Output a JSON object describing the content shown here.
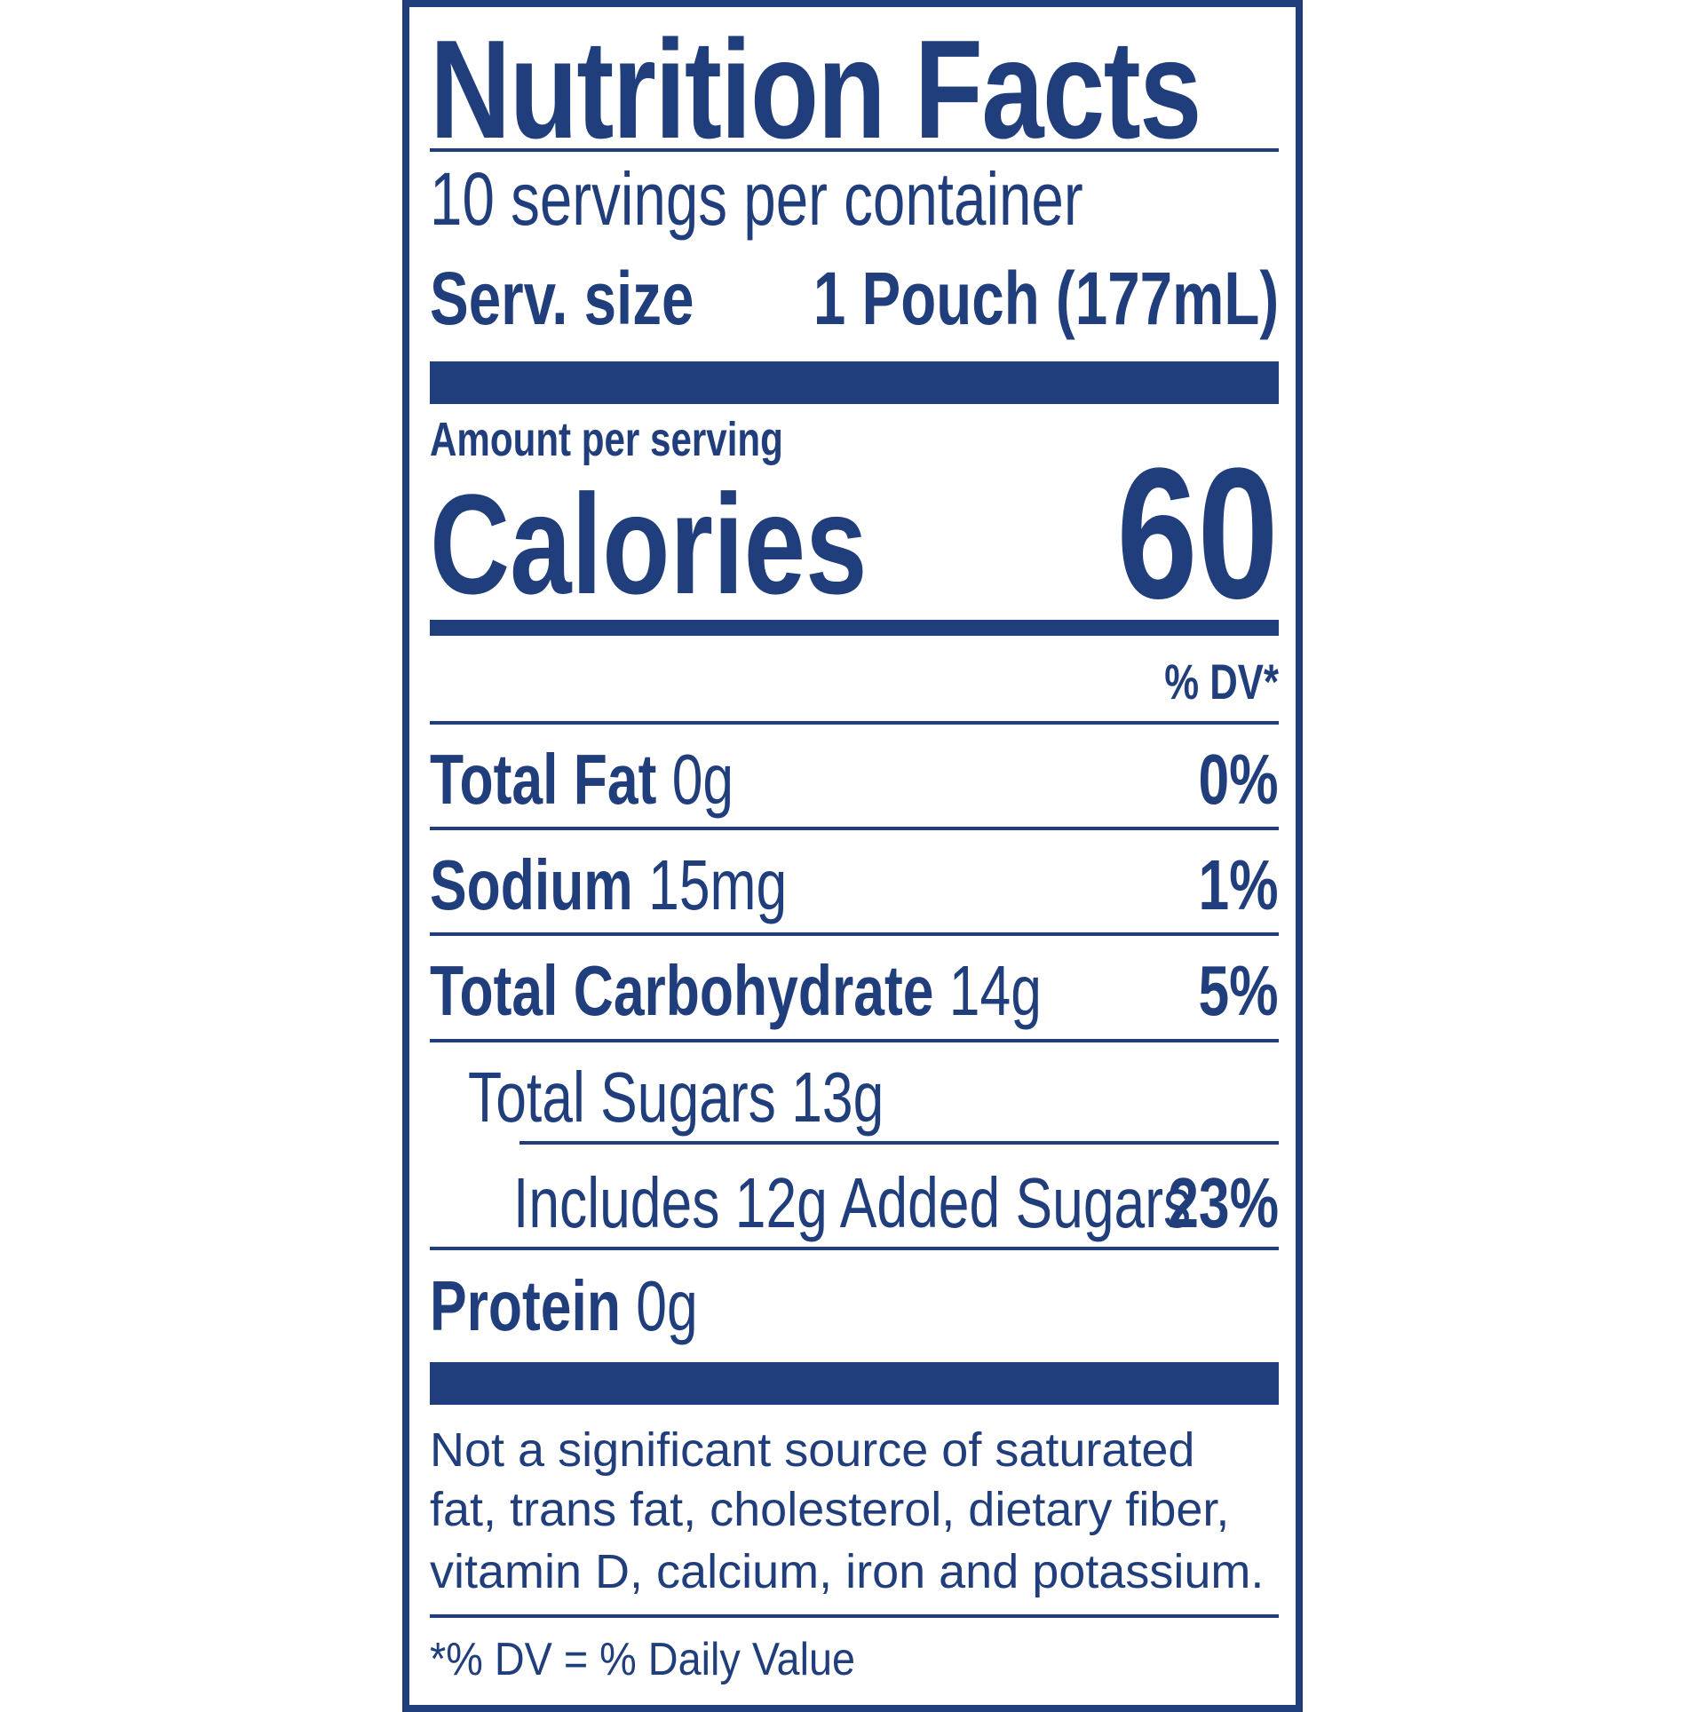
{
  "title": "Nutrition Facts",
  "servings_per_container": "10 servings per container",
  "serving_size": {
    "label": "Serv. size",
    "value": "1 Pouch (177mL)"
  },
  "amount_per_serving": "Amount per serving",
  "calories": {
    "label": "Calories",
    "value": "60"
  },
  "dv_header": "% DV*",
  "nutrients": [
    {
      "name": "Total Fat",
      "amount": "0g",
      "dv": "0%"
    },
    {
      "name": "Sodium",
      "amount": "15mg",
      "dv": "1%"
    },
    {
      "name": "Total Carbohydrate",
      "amount": "14g",
      "dv": "5%"
    },
    {
      "name": "Total Sugars 13g",
      "amount": "",
      "dv": ""
    },
    {
      "name": "Includes 12g Added Sugars",
      "amount": "",
      "dv": "23%"
    },
    {
      "name": "Protein",
      "amount": "0g",
      "dv": ""
    }
  ],
  "footnote_lines": [
    "Not a significant source of saturated",
    "fat, trans fat, cholesterol, dietary fiber,",
    "vitamin D, calcium, iron and potassium."
  ],
  "dv_definition": "*% DV = % Daily Value",
  "colors": {
    "ink": "#213e7c",
    "background": "#ffffff"
  }
}
